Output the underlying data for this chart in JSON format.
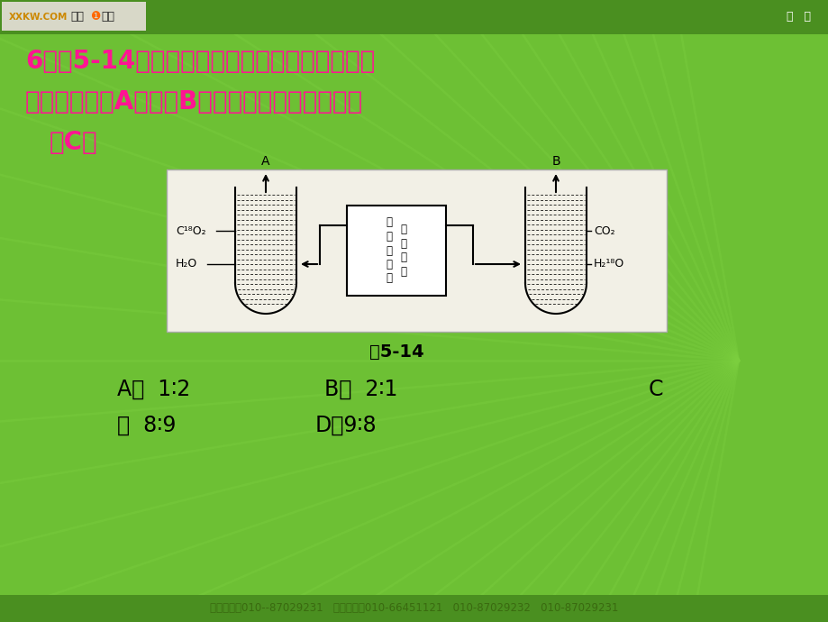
{
  "bg_color": "#6dc034",
  "ray_color": "#7dd040",
  "header_color": "#4a8f20",
  "footer_color_bg": "#4a8f20",
  "footer_text_color": "#3a6a10",
  "title_line1": "6．图5-14是利用小球藻进行光合作用时的实验",
  "title_line2": "示意图，图中A物质和B物质的相对分子质量之比",
  "title_answer": "（C）",
  "title_color": "#ff1493",
  "diagram_caption": "图5-14",
  "option_A": "A．  1∶2",
  "option_B": "B．  2∶1",
  "option_C": "C",
  "option_C2": "．  8∶9",
  "option_D": "D．9∶8",
  "footer": "网校热线：010--87029231   技术支持：010-66451121   010-87029232   010-87029231",
  "diag_bg": "#f2f0e6",
  "diag_border": "#aaaaaa",
  "header_logo_bg": "#ddddcc",
  "text_black": "#111111"
}
